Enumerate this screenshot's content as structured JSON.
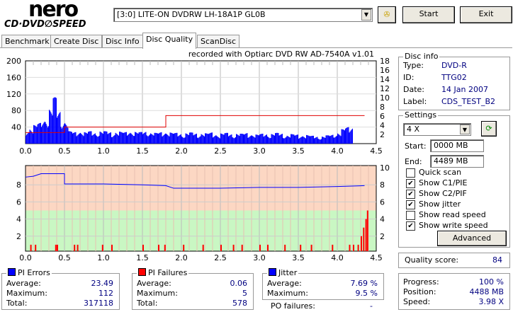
{
  "logo": {
    "line1": "nero",
    "line2": "CD·DVD SPEED"
  },
  "drive": {
    "selected": "[3:0]  LITE-ON DVDRW LH-18A1P GL0B"
  },
  "buttons": {
    "start": "Start",
    "exit": "Exit",
    "advanced": "Advanced"
  },
  "tabs": [
    "Benchmark",
    "Create Disc",
    "Disc Info",
    "Disc Quality",
    "ScanDisc"
  ],
  "active_tab": "Disc Quality",
  "recorded_with": "recorded with Optiarc DVD RW AD-7540A  v1.01",
  "disc_info": {
    "title": "Disc info",
    "rows": [
      {
        "label": "Type:",
        "value": "DVD-R"
      },
      {
        "label": "ID:",
        "value": "TTG02"
      },
      {
        "label": "Date:",
        "value": "14 Jan 2007"
      },
      {
        "label": "Label:",
        "value": "CDS_TEST_B2"
      }
    ]
  },
  "settings": {
    "title": "Settings",
    "speed": "4 X",
    "start_label": "Start:",
    "start_value": "0000 MB",
    "end_label": "End:",
    "end_value": "4489 MB",
    "checks": [
      {
        "label": "Quick scan",
        "checked": false
      },
      {
        "label": "Show C1/PIE",
        "checked": true
      },
      {
        "label": "Show C2/PIF",
        "checked": true
      },
      {
        "label": "Show jitter",
        "checked": true
      },
      {
        "label": "Show read speed",
        "checked": false
      },
      {
        "label": "Show write speed",
        "checked": true
      }
    ]
  },
  "quality": {
    "label": "Quality score:",
    "value": "84"
  },
  "progress": {
    "rows": [
      {
        "label": "Progress:",
        "value": "100 %"
      },
      {
        "label": "Position:",
        "value": "4488 MB"
      },
      {
        "label": "Speed:",
        "value": "3.98 X"
      }
    ]
  },
  "pi_errors": {
    "title": "PI Errors",
    "color": "#0000ff",
    "rows": [
      {
        "label": "Average:",
        "value": "23.49"
      },
      {
        "label": "Maximum:",
        "value": "112"
      },
      {
        "label": "Total:",
        "value": "317118"
      }
    ]
  },
  "pi_failures": {
    "title": "PI Failures",
    "color": "#ff0000",
    "rows": [
      {
        "label": "Average:",
        "value": "0.06"
      },
      {
        "label": "Maximum:",
        "value": "5"
      },
      {
        "label": "Total:",
        "value": "578"
      }
    ]
  },
  "jitter": {
    "title": "Jitter",
    "color": "#0000ff",
    "rows": [
      {
        "label": "Average:",
        "value": "7.69 %"
      },
      {
        "label": "Maximum:",
        "value": "9.5 %"
      }
    ],
    "po_label": "PO failures:",
    "po_value": "-"
  },
  "chart_data": [
    {
      "type": "bar",
      "name": "PI errors / write speed",
      "xlim": [
        0,
        4.5
      ],
      "ylim": [
        0,
        200
      ],
      "y2lim": [
        0,
        18
      ],
      "xticks": [
        "0.0",
        "0.5",
        "1.0",
        "1.5",
        "2.0",
        "2.5",
        "3.0",
        "3.5",
        "4.0",
        "4.5"
      ],
      "yticks": [
        "200",
        "160",
        "120",
        "80",
        "40"
      ],
      "y2ticks": [
        "18",
        "16",
        "14",
        "12",
        "10",
        "8",
        "6",
        "4",
        "2"
      ],
      "pie_step": 0.05,
      "pie": [
        35,
        40,
        45,
        50,
        60,
        70,
        85,
        112,
        80,
        65,
        55,
        30,
        28,
        30,
        32,
        28,
        30,
        27,
        29,
        31,
        30,
        28,
        27,
        30,
        29,
        28,
        30,
        32,
        29,
        28,
        30,
        31,
        27,
        26,
        28,
        30,
        29,
        27,
        26,
        25,
        24,
        26,
        27,
        25,
        24,
        26,
        25,
        27,
        24,
        23,
        25,
        26,
        24,
        23,
        25,
        24,
        26,
        25,
        23,
        22,
        24,
        25,
        23,
        24,
        26,
        25,
        22,
        21,
        23,
        22,
        20,
        22,
        21,
        19,
        18,
        17,
        18,
        20,
        22,
        25,
        28,
        35,
        40,
        42,
        0,
        0,
        0,
        0,
        0,
        0
      ],
      "write_speed": [
        {
          "x": 0,
          "y": 2.4
        },
        {
          "x": 0.5,
          "y": 2.4
        },
        {
          "x": 0.5,
          "y": 3.6
        },
        {
          "x": 1.8,
          "y": 3.6
        },
        {
          "x": 1.8,
          "y": 6.1
        },
        {
          "x": 4.35,
          "y": 6.1
        }
      ]
    },
    {
      "type": "bar",
      "name": "PI failures / jitter",
      "xlim": [
        0,
        4.5
      ],
      "ylim": [
        0,
        10
      ],
      "y2lim": [
        0,
        10
      ],
      "yticks": [
        "8",
        "6",
        "4",
        "2"
      ],
      "y2ticks": [
        "10",
        "8",
        "6",
        "4",
        "2"
      ],
      "pif": [
        {
          "x": 0.06,
          "y": 1
        },
        {
          "x": 0.12,
          "y": 1
        },
        {
          "x": 0.38,
          "y": 1
        },
        {
          "x": 0.4,
          "y": 1
        },
        {
          "x": 0.62,
          "y": 1
        },
        {
          "x": 0.66,
          "y": 1
        },
        {
          "x": 0.98,
          "y": 1
        },
        {
          "x": 1.1,
          "y": 1
        },
        {
          "x": 1.5,
          "y": 1
        },
        {
          "x": 1.7,
          "y": 1
        },
        {
          "x": 1.78,
          "y": 1
        },
        {
          "x": 2.02,
          "y": 1
        },
        {
          "x": 2.27,
          "y": 1
        },
        {
          "x": 2.5,
          "y": 1
        },
        {
          "x": 2.66,
          "y": 1
        },
        {
          "x": 2.77,
          "y": 1
        },
        {
          "x": 3.0,
          "y": 1
        },
        {
          "x": 3.1,
          "y": 1
        },
        {
          "x": 3.32,
          "y": 1
        },
        {
          "x": 3.52,
          "y": 1
        },
        {
          "x": 3.66,
          "y": 1
        },
        {
          "x": 3.93,
          "y": 1
        },
        {
          "x": 4.15,
          "y": 1
        },
        {
          "x": 4.2,
          "y": 1
        },
        {
          "x": 4.26,
          "y": 1
        },
        {
          "x": 4.3,
          "y": 2
        },
        {
          "x": 4.33,
          "y": 3
        },
        {
          "x": 4.36,
          "y": 4
        },
        {
          "x": 4.38,
          "y": 5
        }
      ],
      "jitter": [
        {
          "x": 0,
          "y": 8.9
        },
        {
          "x": 0.1,
          "y": 9.0
        },
        {
          "x": 0.2,
          "y": 9.3
        },
        {
          "x": 0.4,
          "y": 9.3
        },
        {
          "x": 0.5,
          "y": 9.3
        },
        {
          "x": 0.5,
          "y": 8.1
        },
        {
          "x": 1.0,
          "y": 8.1
        },
        {
          "x": 1.5,
          "y": 8.0
        },
        {
          "x": 1.8,
          "y": 7.9
        },
        {
          "x": 1.9,
          "y": 7.6
        },
        {
          "x": 2.5,
          "y": 7.6
        },
        {
          "x": 3.0,
          "y": 7.7
        },
        {
          "x": 3.5,
          "y": 7.7
        },
        {
          "x": 4.0,
          "y": 7.8
        },
        {
          "x": 4.35,
          "y": 7.9
        }
      ]
    }
  ]
}
